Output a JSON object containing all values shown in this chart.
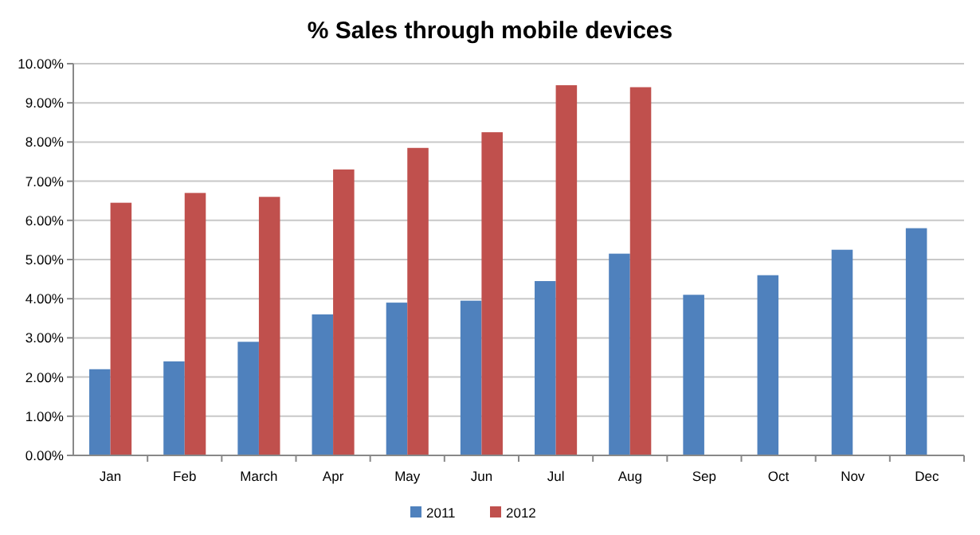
{
  "chart_data": {
    "type": "bar",
    "title": "% Sales through mobile devices",
    "categories": [
      "Jan",
      "Feb",
      "March",
      "Apr",
      "May",
      "Jun",
      "Jul",
      "Aug",
      "Sep",
      "Oct",
      "Nov",
      "Dec"
    ],
    "series": [
      {
        "name": "2011",
        "color": "#4f81bd",
        "values": [
          2.2,
          2.4,
          2.9,
          3.6,
          3.9,
          3.95,
          4.45,
          5.15,
          4.1,
          4.6,
          5.25,
          5.8
        ]
      },
      {
        "name": "2012",
        "color": "#c0504d",
        "values": [
          6.45,
          6.7,
          6.6,
          7.3,
          7.85,
          8.25,
          9.45,
          9.4,
          null,
          null,
          null,
          null
        ]
      }
    ],
    "ylim": [
      0,
      10
    ],
    "yticks": [
      {
        "value": 0,
        "label": "0.00%"
      },
      {
        "value": 1,
        "label": "1.00%"
      },
      {
        "value": 2,
        "label": "2.00%"
      },
      {
        "value": 3,
        "label": "3.00%"
      },
      {
        "value": 4,
        "label": "4.00%"
      },
      {
        "value": 5,
        "label": "5.00%"
      },
      {
        "value": 6,
        "label": "6.00%"
      },
      {
        "value": 7,
        "label": "7.00%"
      },
      {
        "value": 8,
        "label": "8.00%"
      },
      {
        "value": 9,
        "label": "9.00%"
      },
      {
        "value": 10,
        "label": "10.00%"
      }
    ],
    "grid": "y",
    "legend": "bottom"
  }
}
